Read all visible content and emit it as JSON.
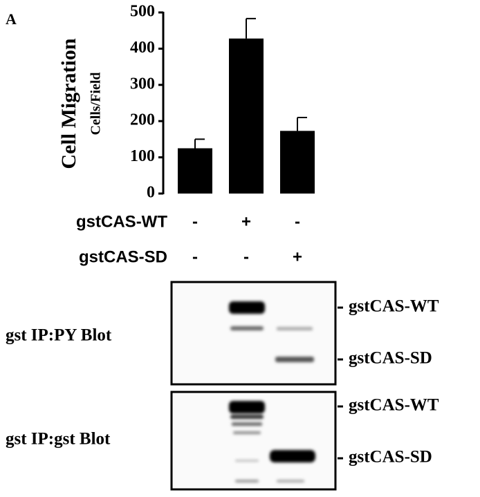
{
  "panel_label": "A",
  "chart_data": {
    "type": "bar",
    "y_label": "Cell Migration",
    "y_sublabel": "Cells/Field",
    "categories": [
      null,
      null,
      null
    ],
    "values": [
      125,
      428,
      173
    ],
    "errors": [
      25,
      55,
      37
    ],
    "color": "#000000",
    "ylim": [
      0,
      500
    ],
    "yticks": [
      0,
      100,
      200,
      300,
      400,
      500
    ],
    "grid": false
  },
  "conditions": [
    {
      "label": "gstCAS-WT",
      "marks": [
        "-",
        "+",
        "-"
      ]
    },
    {
      "label": "gstCAS-SD",
      "marks": [
        "-",
        "-",
        "+"
      ]
    }
  ],
  "blots": [
    {
      "label": "gst IP:PY Blot",
      "bands": [
        "gstCAS-WT",
        "gstCAS-SD"
      ]
    },
    {
      "label": "gst IP:gst Blot",
      "bands": [
        "gstCAS-WT",
        "gstCAS-SD"
      ]
    }
  ]
}
